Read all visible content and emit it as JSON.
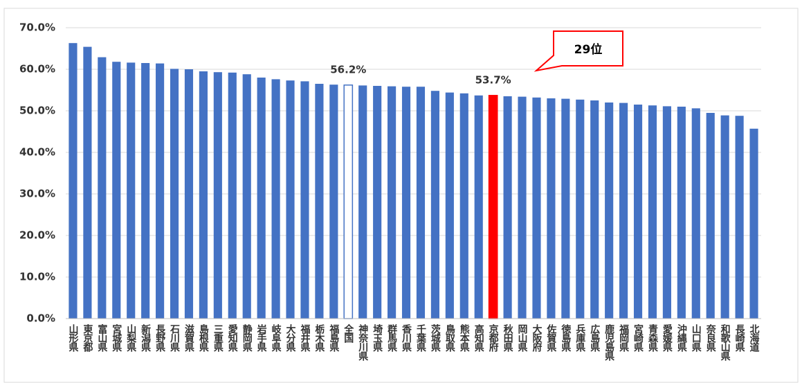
{
  "chart_data": {
    "type": "bar",
    "categories": [
      "山形県",
      "東京都",
      "富山県",
      "宮城県",
      "山梨県",
      "新潟県",
      "長野県",
      "石川県",
      "滋賀県",
      "島根県",
      "三重県",
      "愛知県",
      "静岡県",
      "岩手県",
      "岐阜県",
      "大分県",
      "福井県",
      "栃木県",
      "福島県",
      "全国",
      "神奈川県",
      "埼玉県",
      "群馬県",
      "香川県",
      "千葉県",
      "茨城県",
      "鳥取県",
      "熊本県",
      "高知県",
      "京都府",
      "秋田県",
      "岡山県",
      "大阪府",
      "佐賀県",
      "徳島県",
      "兵庫県",
      "広島県",
      "鹿児島県",
      "福岡県",
      "宮崎県",
      "青森県",
      "愛媛県",
      "沖縄県",
      "山口県",
      "奈良県",
      "和歌山県",
      "長崎県",
      "北海道"
    ],
    "values": [
      66.3,
      65.4,
      62.9,
      61.8,
      61.6,
      61.5,
      61.4,
      60.1,
      60.0,
      59.5,
      59.3,
      59.2,
      58.8,
      58.0,
      57.6,
      57.3,
      57.1,
      56.5,
      56.3,
      56.2,
      56.1,
      56.0,
      55.9,
      55.8,
      55.8,
      54.8,
      54.4,
      54.2,
      53.7,
      53.7,
      53.5,
      53.4,
      53.2,
      53.0,
      52.9,
      52.7,
      52.5,
      52.0,
      51.9,
      51.5,
      51.3,
      51.1,
      51.0,
      50.6,
      49.5,
      48.9,
      48.8,
      45.7
    ],
    "value_labels": [
      null,
      null,
      null,
      null,
      null,
      null,
      null,
      null,
      null,
      null,
      null,
      null,
      null,
      null,
      null,
      null,
      null,
      null,
      null,
      "56.2%",
      null,
      null,
      null,
      null,
      null,
      null,
      null,
      null,
      null,
      "53.7%",
      null,
      null,
      null,
      null,
      null,
      null,
      null,
      null,
      null,
      null,
      null,
      null,
      null,
      null,
      null,
      null,
      null,
      null
    ],
    "color": "#4472c4",
    "highlights": [
      {
        "index": 19,
        "fill": "#ffffff",
        "stroke": "#4472c4"
      },
      {
        "index": 29,
        "fill": "#ff0000",
        "stroke": "#ff0000"
      }
    ],
    "annotation": "29位",
    "ylim": [
      0,
      70
    ],
    "yticks": [
      {
        "value": 0,
        "label": "0.0%"
      },
      {
        "value": 10,
        "label": "10.0%"
      },
      {
        "value": 20,
        "label": "20.0%"
      },
      {
        "value": 30,
        "label": "30.0%"
      },
      {
        "value": 40,
        "label": "40.0%"
      },
      {
        "value": 50,
        "label": "50.0%"
      },
      {
        "value": 60,
        "label": "60.0%"
      },
      {
        "value": 70,
        "label": "70.0%"
      }
    ],
    "grid": true
  }
}
